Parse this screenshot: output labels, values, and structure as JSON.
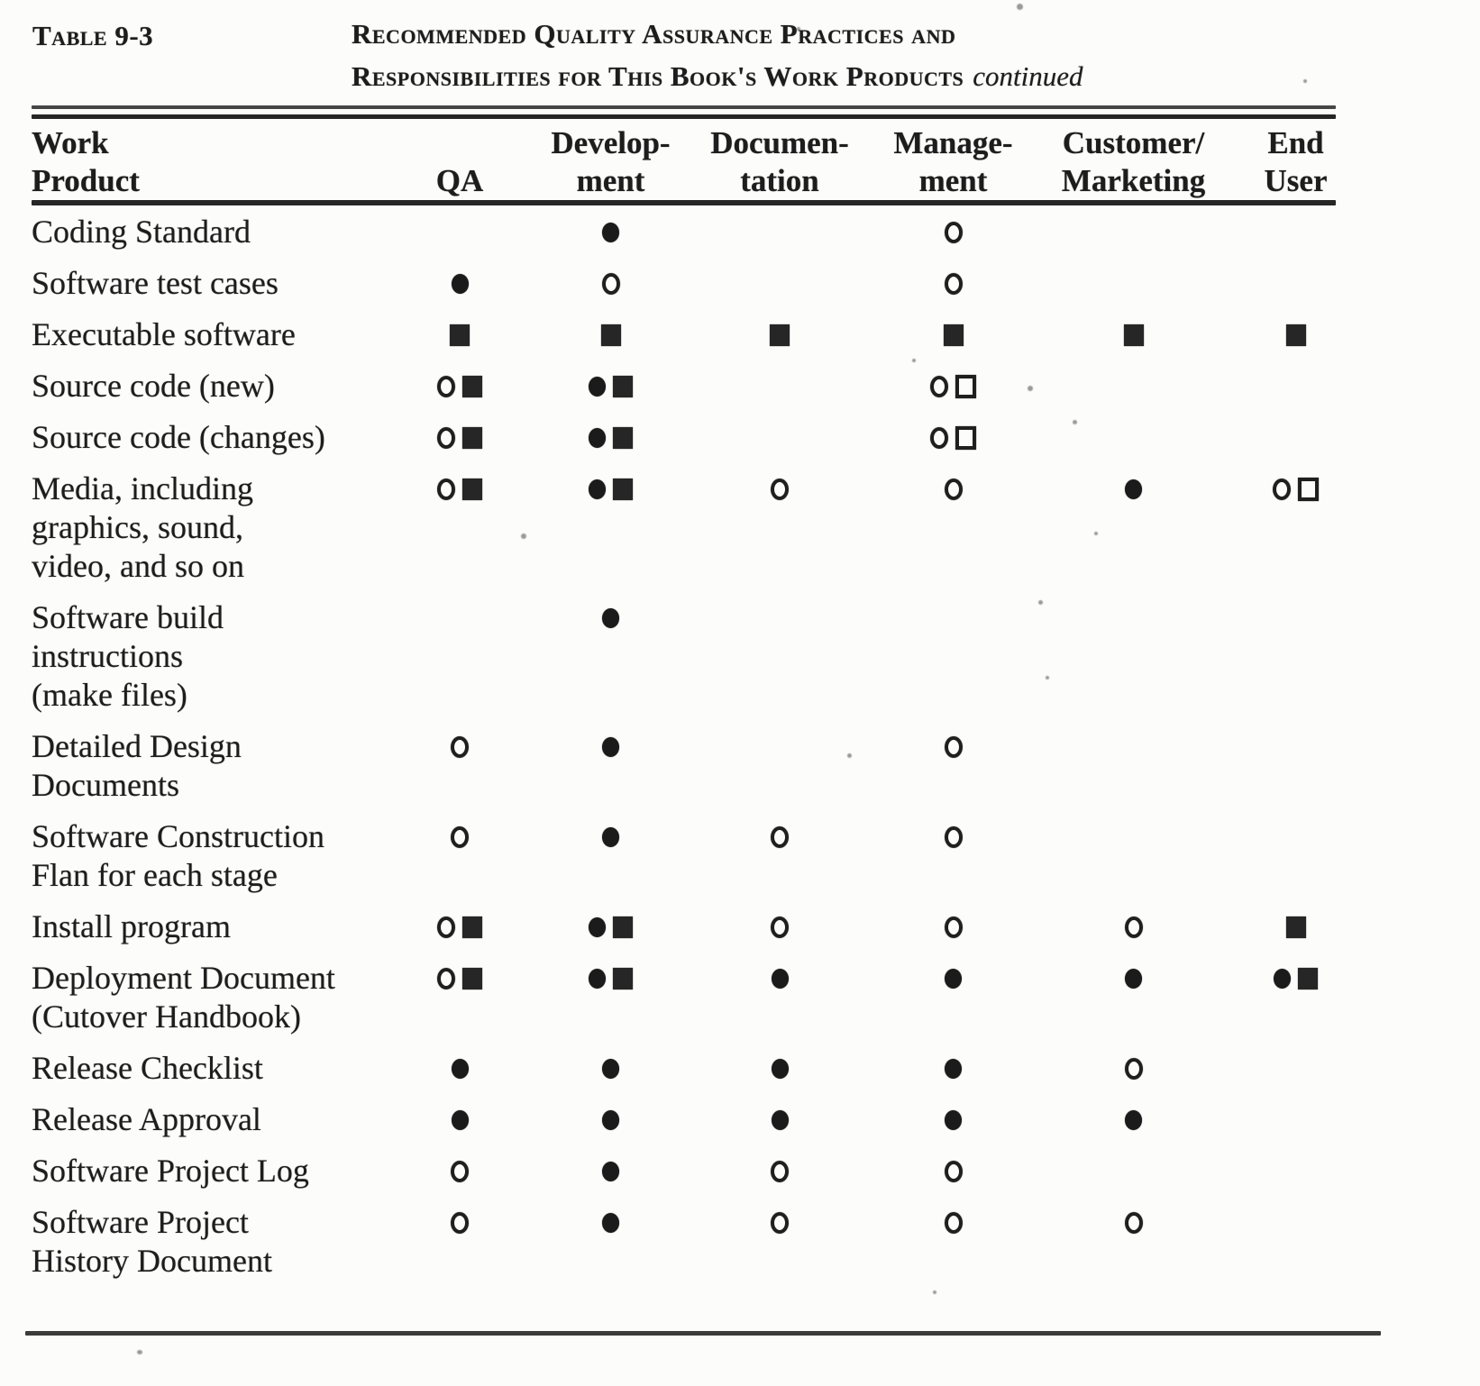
{
  "header": {
    "table_label": "Table 9-3",
    "title_line1": "Recommended Quality Assurance Practices and",
    "title_line2": "Responsibilities for This Book's Work Products",
    "title_continued": "continued"
  },
  "columns": [
    {
      "id": "work_product",
      "lines": [
        "Work",
        "Product"
      ]
    },
    {
      "id": "qa",
      "lines": [
        "QA"
      ]
    },
    {
      "id": "development",
      "lines": [
        "Develop-",
        "ment"
      ]
    },
    {
      "id": "documentation",
      "lines": [
        "Documen-",
        "tation"
      ]
    },
    {
      "id": "management",
      "lines": [
        "Manage-",
        "ment"
      ]
    },
    {
      "id": "customer_marketing",
      "lines": [
        "Customer/",
        "Marketing"
      ]
    },
    {
      "id": "end_user",
      "lines": [
        "End",
        "User"
      ]
    }
  ],
  "symbol_names": {
    "filled-circle": "filled circle",
    "open-circle": "open circle",
    "filled-square": "filled square",
    "open-square": "open square"
  },
  "rows": [
    {
      "label_lines": [
        "Coding Standard"
      ],
      "cells": {
        "qa": [],
        "development": [
          "filled-circle"
        ],
        "documentation": [],
        "management": [
          "open-circle"
        ],
        "customer_marketing": [],
        "end_user": []
      }
    },
    {
      "label_lines": [
        "Software test cases"
      ],
      "cells": {
        "qa": [
          "filled-circle"
        ],
        "development": [
          "open-circle"
        ],
        "documentation": [],
        "management": [
          "open-circle"
        ],
        "customer_marketing": [],
        "end_user": []
      }
    },
    {
      "label_lines": [
        "Executable software"
      ],
      "cells": {
        "qa": [
          "filled-square"
        ],
        "development": [
          "filled-square"
        ],
        "documentation": [
          "filled-square"
        ],
        "management": [
          "filled-square"
        ],
        "customer_marketing": [
          "filled-square"
        ],
        "end_user": [
          "filled-square"
        ]
      }
    },
    {
      "label_lines": [
        "Source code (new)"
      ],
      "cells": {
        "qa": [
          "open-circle",
          "filled-square"
        ],
        "development": [
          "filled-circle",
          "filled-square"
        ],
        "documentation": [],
        "management": [
          "open-circle",
          "open-square"
        ],
        "customer_marketing": [],
        "end_user": []
      }
    },
    {
      "label_lines": [
        "Source code (changes)"
      ],
      "cells": {
        "qa": [
          "open-circle",
          "filled-square"
        ],
        "development": [
          "filled-circle",
          "filled-square"
        ],
        "documentation": [],
        "management": [
          "open-circle",
          "open-square"
        ],
        "customer_marketing": [],
        "end_user": []
      }
    },
    {
      "label_lines": [
        "Media, including",
        "graphics, sound,",
        "video, and so on"
      ],
      "cells": {
        "qa": [
          "open-circle",
          "filled-square"
        ],
        "development": [
          "filled-circle",
          "filled-square"
        ],
        "documentation": [
          "open-circle"
        ],
        "management": [
          "open-circle"
        ],
        "customer_marketing": [
          "filled-circle"
        ],
        "end_user": [
          "open-circle",
          "open-square"
        ]
      }
    },
    {
      "label_lines": [
        "Software  build",
        "instructions",
        "(make files)"
      ],
      "cells": {
        "qa": [],
        "development": [
          "filled-circle"
        ],
        "documentation": [],
        "management": [],
        "customer_marketing": [],
        "end_user": []
      }
    },
    {
      "label_lines": [
        "Detailed Design",
        "Documents"
      ],
      "cells": {
        "qa": [
          "open-circle"
        ],
        "development": [
          "filled-circle"
        ],
        "documentation": [],
        "management": [
          "open-circle"
        ],
        "customer_marketing": [],
        "end_user": []
      }
    },
    {
      "label_lines": [
        "Software  Construction",
        "Flan for each stage"
      ],
      "cells": {
        "qa": [
          "open-circle"
        ],
        "development": [
          "filled-circle"
        ],
        "documentation": [
          "open-circle"
        ],
        "management": [
          "open-circle"
        ],
        "customer_marketing": [],
        "end_user": []
      }
    },
    {
      "label_lines": [
        "Install program"
      ],
      "cells": {
        "qa": [
          "open-circle",
          "filled-square"
        ],
        "development": [
          "filled-circle",
          "filled-square"
        ],
        "documentation": [
          "open-circle"
        ],
        "management": [
          "open-circle"
        ],
        "customer_marketing": [
          "open-circle"
        ],
        "end_user": [
          "filled-square"
        ]
      }
    },
    {
      "label_lines": [
        "Deployment Document",
        "(Cutover  Handbook)"
      ],
      "cells": {
        "qa": [
          "open-circle",
          "filled-square"
        ],
        "development": [
          "filled-circle",
          "filled-square"
        ],
        "documentation": [
          "filled-circle"
        ],
        "management": [
          "filled-circle"
        ],
        "customer_marketing": [
          "filled-circle"
        ],
        "end_user": [
          "filled-circle",
          "filled-square"
        ]
      }
    },
    {
      "label_lines": [
        "Release  Checklist"
      ],
      "cells": {
        "qa": [
          "filled-circle"
        ],
        "development": [
          "filled-circle"
        ],
        "documentation": [
          "filled-circle"
        ],
        "management": [
          "filled-circle"
        ],
        "customer_marketing": [
          "open-circle"
        ],
        "end_user": []
      }
    },
    {
      "label_lines": [
        "Release  Approval"
      ],
      "cells": {
        "qa": [
          "filled-circle"
        ],
        "development": [
          "filled-circle"
        ],
        "documentation": [
          "filled-circle"
        ],
        "management": [
          "filled-circle"
        ],
        "customer_marketing": [
          "filled-circle"
        ],
        "end_user": []
      }
    },
    {
      "label_lines": [
        "Software Project Log"
      ],
      "cells": {
        "qa": [
          "open-circle"
        ],
        "development": [
          "filled-circle"
        ],
        "documentation": [
          "open-circle"
        ],
        "management": [
          "open-circle"
        ],
        "customer_marketing": [],
        "end_user": []
      }
    },
    {
      "label_lines": [
        "Software Project",
        "History Document"
      ],
      "cells": {
        "qa": [
          "open-circle"
        ],
        "development": [
          "filled-circle"
        ],
        "documentation": [
          "open-circle"
        ],
        "management": [
          "open-circle"
        ],
        "customer_marketing": [
          "open-circle"
        ],
        "end_user": []
      }
    }
  ],
  "colors": {
    "ink": "#1d1d1d",
    "background": "#fcfcfb"
  }
}
